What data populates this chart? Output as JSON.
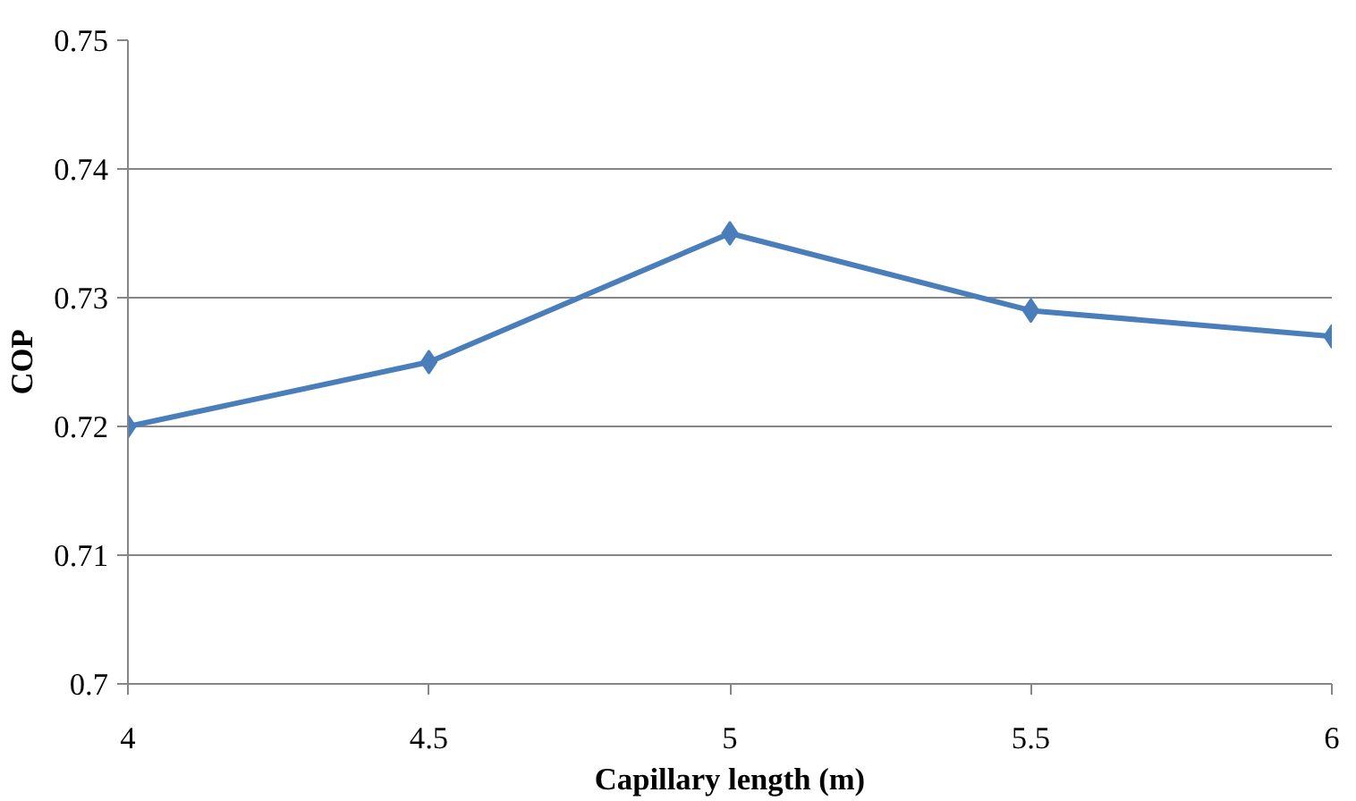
{
  "chart_data": {
    "type": "line",
    "xlabel": "Capillary length (m)",
    "ylabel": "COP",
    "x": [
      4,
      4.5,
      5,
      5.5,
      6
    ],
    "series": [
      {
        "color": "#4a7ebb",
        "values": [
          0.72,
          0.725,
          0.735,
          0.729,
          0.727
        ]
      }
    ],
    "xlim": [
      4,
      6
    ],
    "xticks": [
      4,
      {
        "value": 4.5,
        "label": "4.5"
      },
      5,
      {
        "value": 5.5,
        "label": "5.5"
      },
      6
    ],
    "ylim": [
      0.7,
      0.75
    ],
    "yticks": [
      {
        "value": 0.7,
        "label": "0.7"
      },
      0.71,
      0.72,
      0.73,
      0.74,
      0.75
    ],
    "grid": "y",
    "marker": "diamond",
    "line_style": "solid"
  }
}
